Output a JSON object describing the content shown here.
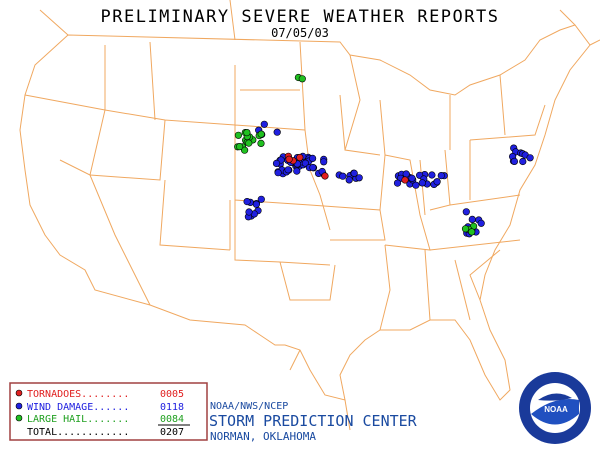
{
  "header": {
    "title": "PRELIMINARY SEVERE WEATHER REPORTS",
    "date": "07/05/03"
  },
  "legend": {
    "rows": [
      {
        "label": "TORNADOES........",
        "count": "0005"
      },
      {
        "label": "WIND DAMAGE......",
        "count": "0118"
      },
      {
        "label": "LARGE HAIL.......",
        "count": "0084"
      },
      {
        "label": "TOTAL............",
        "count": "0207"
      }
    ]
  },
  "footer": {
    "agency": "NOAA/NWS/NCEP",
    "center": "STORM PREDICTION CENTER",
    "location": "NORMAN, OKLAHOMA",
    "logo": "NOAA"
  }
}
